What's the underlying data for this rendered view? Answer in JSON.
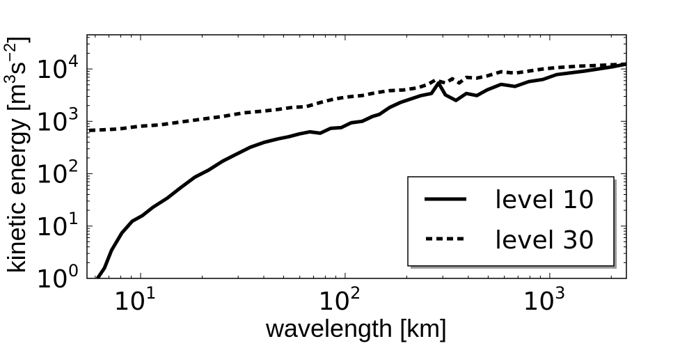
{
  "chart_data": {
    "type": "line",
    "title": "",
    "xlabel": "wavelength [km]",
    "ylabel": "kinetic energy [m³s⁻²]",
    "ylabel_parts": {
      "main": "kinetic energy [m",
      "sup1": "3",
      "mid": "s",
      "sup2": "−2",
      "end": "]"
    },
    "xscale": "log",
    "yscale": "log",
    "xlim": [
      5.47,
      2370
    ],
    "ylim": [
      1,
      45000
    ],
    "grid": false,
    "legend_position": "lower-right",
    "x_ticks": [
      {
        "value": 10,
        "base": "10",
        "exp": "1"
      },
      {
        "value": 100,
        "base": "10",
        "exp": "2"
      },
      {
        "value": 1000,
        "base": "10",
        "exp": "3"
      }
    ],
    "y_ticks": [
      {
        "value": 1,
        "base": "10",
        "exp": "0"
      },
      {
        "value": 10,
        "base": "10",
        "exp": "1"
      },
      {
        "value": 100,
        "base": "10",
        "exp": "2"
      },
      {
        "value": 1000,
        "base": "10",
        "exp": "3"
      },
      {
        "value": 10000,
        "base": "10",
        "exp": "4"
      }
    ],
    "series": [
      {
        "name": "level 10",
        "style": "solid",
        "color": "#000000",
        "x": [
          6.15,
          6.66,
          7.2,
          8.09,
          9.1,
          10.2,
          11.5,
          13.5,
          15.7,
          18.4,
          21.5,
          25.2,
          29.4,
          34.4,
          40.3,
          47.1,
          53.0,
          59.6,
          67.1,
          75.5,
          84.9,
          95.5,
          107,
          121,
          136,
          147,
          165,
          186,
          209,
          235,
          264,
          286,
          309,
          348,
          391,
          440,
          494,
          578,
          676,
          791,
          925,
          1080,
          1480,
          2020,
          2370
        ],
        "y": [
          1.0,
          1.58,
          3.41,
          7.36,
          12.4,
          15.8,
          22.9,
          34.1,
          54.1,
          85.8,
          117,
          174,
          236,
          321,
          398,
          464,
          509,
          575,
          631,
          593,
          736,
          759,
          940,
          1000,
          1240,
          1360,
          1850,
          2290,
          2670,
          3110,
          3410,
          5410,
          3210,
          2510,
          3410,
          3110,
          3980,
          5090,
          4640,
          5750,
          6310,
          7820,
          9120,
          11000,
          12400
        ]
      },
      {
        "name": "level 30",
        "style": "dashed",
        "color": "#000000",
        "x": [
          5.6,
          6.66,
          7.78,
          9.84,
          12.4,
          15.7,
          19.9,
          25.2,
          31.8,
          40.3,
          47.1,
          55.1,
          64.5,
          75.5,
          88.3,
          103,
          121,
          141,
          165,
          193,
          226,
          254,
          275,
          309,
          334,
          361,
          391,
          440,
          494,
          578,
          676,
          791,
          925,
          1080,
          1370,
          1730,
          2370
        ],
        "y": [
          671,
          692,
          713,
          806,
          858,
          970,
          1100,
          1240,
          1450,
          1580,
          1690,
          1850,
          1910,
          2290,
          2670,
          2930,
          3110,
          3520,
          3860,
          3980,
          4370,
          5090,
          6120,
          5410,
          6500,
          5410,
          6920,
          6710,
          7360,
          8850,
          8320,
          9120,
          10000,
          10600,
          11300,
          11700,
          12400
        ]
      }
    ]
  }
}
